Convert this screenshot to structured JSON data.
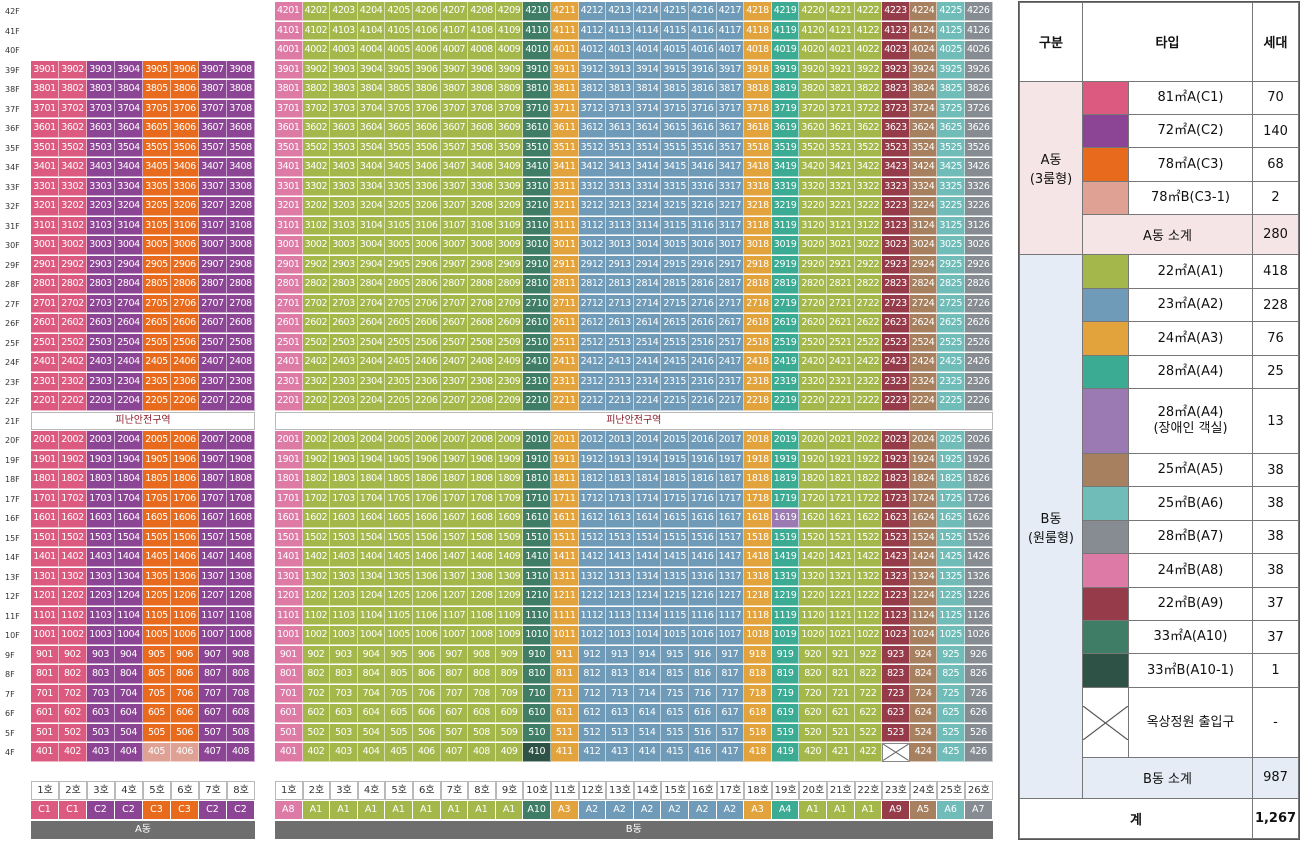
{
  "floors": [
    "42F",
    "41F",
    "40F",
    "39F",
    "38F",
    "37F",
    "36F",
    "35F",
    "34F",
    "33F",
    "32F",
    "31F",
    "30F",
    "29F",
    "28F",
    "27F",
    "26F",
    "25F",
    "24F",
    "23F",
    "22F",
    "21F",
    "20F",
    "19F",
    "18F",
    "17F",
    "16F",
    "15F",
    "14F",
    "13F",
    "12F",
    "11F",
    "10F",
    "9F",
    "8F",
    "7F",
    "6F",
    "5F",
    "4F"
  ],
  "refuge_label": "피난안전구역",
  "a_dong": {
    "label": "A동",
    "columns": [
      "1호",
      "2호",
      "3호",
      "4호",
      "5호",
      "6호",
      "7호",
      "8호"
    ],
    "types": [
      "C1",
      "C1",
      "C2",
      "C2",
      "C3",
      "C3",
      "C2",
      "C2"
    ],
    "col_colors": [
      "#dc5a80",
      "#dc5a80",
      "#8c4594",
      "#8c4594",
      "#e86a1c",
      "#e86a1c",
      "#8c4594",
      "#8c4594"
    ],
    "special_cells": {
      "405": "#dea194",
      "406": "#dea194"
    }
  },
  "b_dong": {
    "label": "B동",
    "columns": [
      "1호",
      "2호",
      "3호",
      "4호",
      "5호",
      "6호",
      "7호",
      "8호",
      "9호",
      "10호",
      "11호",
      "12호",
      "13호",
      "14호",
      "15호",
      "16호",
      "17호",
      "18호",
      "19호",
      "20호",
      "21호",
      "22호",
      "23호",
      "24호",
      "25호",
      "26호"
    ],
    "types": [
      "A8",
      "A1",
      "A1",
      "A1",
      "A1",
      "A1",
      "A1",
      "A1",
      "A1",
      "A10",
      "A3",
      "A2",
      "A2",
      "A2",
      "A2",
      "A2",
      "A2",
      "A3",
      "A4",
      "A1",
      "A1",
      "A1",
      "A9",
      "A5",
      "A6",
      "A7"
    ],
    "col_colors": [
      "#dd7aa6",
      "#a4b74b",
      "#a4b74b",
      "#a4b74b",
      "#a4b74b",
      "#a4b74b",
      "#a4b74b",
      "#a4b74b",
      "#a4b74b",
      "#3f7d66",
      "#e3a33c",
      "#6f9bb8",
      "#6f9bb8",
      "#6f9bb8",
      "#6f9bb8",
      "#6f9bb8",
      "#6f9bb8",
      "#e3a33c",
      "#3bab93",
      "#a4b74b",
      "#a4b74b",
      "#a4b74b",
      "#963b4a",
      "#a6805f",
      "#6fbcb8",
      "#878c92"
    ],
    "special_cells": {
      "4210": "#3f7d66",
      "4110": "#3f7d66",
      "410": "#2e5246",
      "1619": "#9b7ab3",
      "1719": "#3bab93",
      "4201": "#dd7aa6"
    },
    "blocked_cell_label": "옥상정원 출입구"
  },
  "legend": {
    "headers": [
      "구분",
      "타입",
      "세대"
    ],
    "a_group": "A동\n(3룸형)",
    "a_rows": [
      {
        "color": "#dc5a80",
        "type": "81㎡A(C1)",
        "count": "70"
      },
      {
        "color": "#8c4594",
        "type": "72㎡A(C2)",
        "count": "140"
      },
      {
        "color": "#e86a1c",
        "type": "78㎡A(C3)",
        "count": "68"
      },
      {
        "color": "#dea194",
        "type": "78㎡B(C3-1)",
        "count": "2"
      }
    ],
    "a_subtotal_label": "A동 소계",
    "a_subtotal": "280",
    "b_group": "B동\n(원룸형)",
    "b_rows": [
      {
        "color": "#a4b74b",
        "type": "22㎡A(A1)",
        "count": "418"
      },
      {
        "color": "#6f9bb8",
        "type": "23㎡A(A2)",
        "count": "228"
      },
      {
        "color": "#e3a33c",
        "type": "24㎡A(A3)",
        "count": "76"
      },
      {
        "color": "#3bab93",
        "type": "28㎡A(A4)",
        "count": "25"
      },
      {
        "color": "#9b7ab3",
        "type": "28㎡A(A4)\n(장애인 객실)",
        "count": "13"
      },
      {
        "color": "#a6805f",
        "type": "25㎡A(A5)",
        "count": "38"
      },
      {
        "color": "#6fbcb8",
        "type": "25㎡B(A6)",
        "count": "38"
      },
      {
        "color": "#878c92",
        "type": "28㎡B(A7)",
        "count": "38"
      },
      {
        "color": "#dd7aa6",
        "type": "24㎡B(A8)",
        "count": "38"
      },
      {
        "color": "#963b4a",
        "type": "22㎡B(A9)",
        "count": "37"
      },
      {
        "color": "#3f7d66",
        "type": "33㎡A(A10)",
        "count": "37"
      },
      {
        "color": "#2e5246",
        "type": "33㎡B(A10-1)",
        "count": "1"
      },
      {
        "color": "x",
        "type": "옥상정원 출입구",
        "count": "-"
      }
    ],
    "b_subtotal_label": "B동 소계",
    "b_subtotal": "987",
    "total_label": "계",
    "total": "1,267"
  }
}
